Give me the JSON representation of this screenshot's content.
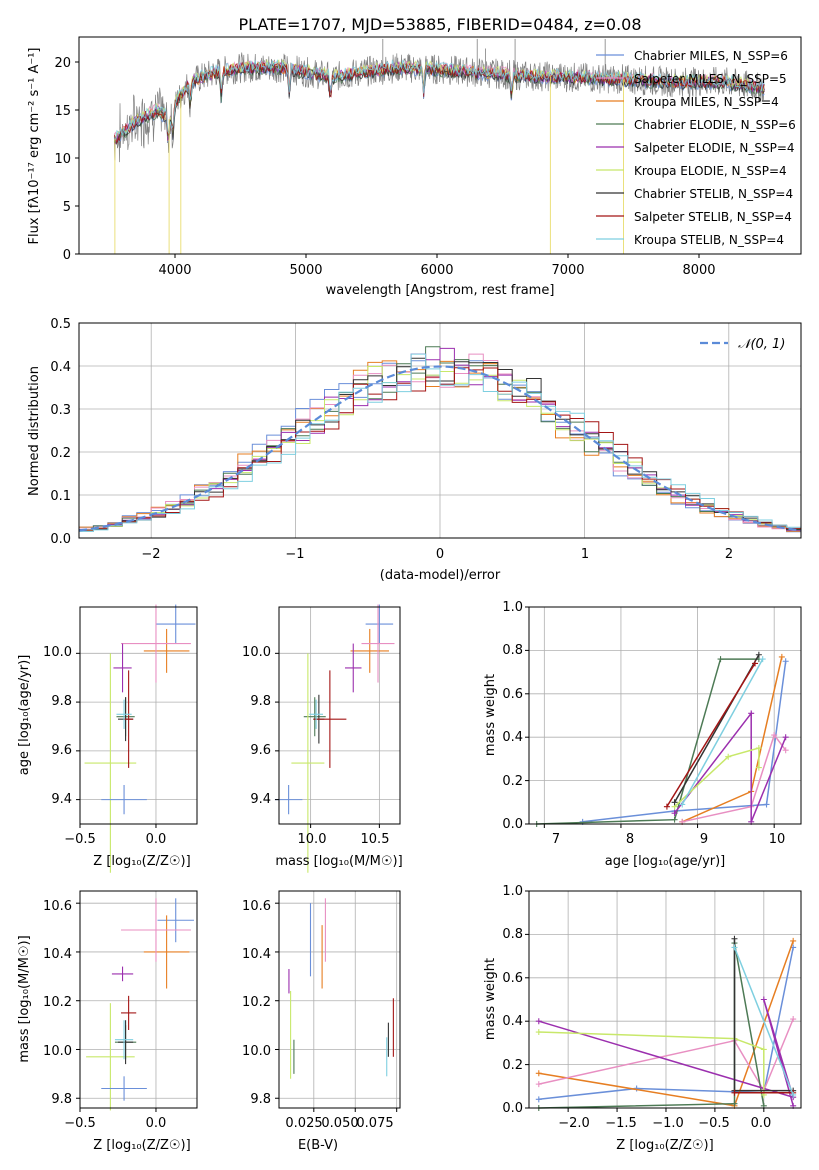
{
  "colors": {
    "axis": "#000000",
    "grid": "#b0b0b0",
    "normal_curve": "#5b8bd8",
    "series": [
      "#5b8bd8",
      "#f39c3a",
      "#d97a27",
      "#4c7a52",
      "#8e2fa8",
      "#d6e060",
      "#555555",
      "#b01c1c",
      "#8ed7e6"
    ],
    "series_alt": [
      "#6a8fd9",
      "#e67e22",
      "#e88fc2",
      "#4d7a55",
      "#9b2fae",
      "#c8e86a",
      "#333333",
      "#a31515",
      "#7ecfe0"
    ]
  },
  "spectrum": {
    "title": "PLATE=1707, MJD=53885, FIBERID=0484, z=0.08",
    "xlabel": "wavelength [Angstrom, rest frame]",
    "ylabel": "Flux [fλ10⁻¹⁷ erg cm⁻² s⁻¹ A⁻¹]",
    "xticks": [
      "4000",
      "5000",
      "6000",
      "7000",
      "8000"
    ],
    "yticks": [
      "0",
      "5",
      "10",
      "15",
      "20"
    ],
    "legend": [
      "Chabrier MILES, N_SSP=6",
      "Salpeter MILES, N_SSP=5",
      "Kroupa MILES, N_SSP=4",
      "Chabrier ELODIE, N_SSP=6",
      "Salpeter ELODIE, N_SSP=4",
      "Kroupa ELODIE, N_SSP=4",
      "Chabrier STELIB, N_SSP=4",
      "Salpeter STELIB, N_SSP=4",
      "Kroupa STELIB, N_SSP=4"
    ]
  },
  "hist": {
    "xlabel": "(data-model)/error",
    "ylabel": "Normed distribution",
    "legend": "𝒩(0, 1)",
    "xticks": [
      "−2",
      "−1",
      "0",
      "1",
      "2"
    ],
    "yticks": [
      "0.0",
      "0.1",
      "0.2",
      "0.3",
      "0.4",
      "0.5"
    ]
  },
  "panels": {
    "age_z": {
      "xlabel": "Z [log₁₀(Z/Z☉)]",
      "ylabel": "age  [log₁₀(age/yr)]",
      "xticks": [
        "−0.5",
        "0.0"
      ],
      "yticks": [
        "9.4",
        "9.6",
        "9.8",
        "10.0"
      ]
    },
    "age_mass": {
      "xlabel": "mass [log₁₀(M/M☉)]",
      "xticks": [
        "10.0",
        "10.5"
      ],
      "yticks": [
        "9.4",
        "9.6",
        "9.8",
        "10.0"
      ]
    },
    "mw_age": {
      "xlabel": "age  [log₁₀(age/yr)]",
      "ylabel": "mass weight",
      "xticks": [
        "7",
        "8",
        "9",
        "10"
      ],
      "yticks": [
        "0.0",
        "0.2",
        "0.4",
        "0.6",
        "0.8",
        "1.0"
      ]
    },
    "mass_z": {
      "xlabel": "Z [log₁₀(Z/Z☉)]",
      "ylabel": "mass [log₁₀(M/M☉)]",
      "xticks": [
        "−0.5",
        "0.0"
      ],
      "yticks": [
        "9.8",
        "10.0",
        "10.2",
        "10.4",
        "10.6"
      ]
    },
    "mass_ebv": {
      "xlabel": "E(B-V)",
      "xticks": [
        "0.025",
        "0.050",
        "0.075"
      ],
      "yticks": [
        "9.8",
        "10.0",
        "10.2",
        "10.4",
        "10.6"
      ]
    },
    "mw_z": {
      "xlabel": "Z [log₁₀(Z/Z☉)]",
      "ylabel": "mass weight",
      "xticks": [
        "−2.0",
        "−1.5",
        "−1.0",
        "−0.5",
        "0.0"
      ],
      "yticks": [
        "0.0",
        "0.2",
        "0.4",
        "0.6",
        "0.8",
        "1.0"
      ]
    }
  },
  "chart_data": [
    {
      "type": "line",
      "id": "spectrum",
      "title": "PLATE=1707, MJD=53885, FIBERID=0484, z=0.08",
      "xlabel": "wavelength [Angstrom, rest frame]",
      "xlim": [
        3250,
        8780
      ],
      "ylim": [
        0,
        22.7
      ],
      "continuum": [
        [
          3520,
          12
        ],
        [
          3700,
          14
        ],
        [
          3850,
          15
        ],
        [
          3950,
          14
        ],
        [
          4000,
          16
        ],
        [
          4100,
          18
        ],
        [
          4300,
          19
        ],
        [
          4500,
          19.5
        ],
        [
          4800,
          19.5
        ],
        [
          5000,
          19
        ],
        [
          5200,
          18.5
        ],
        [
          5400,
          19
        ],
        [
          5700,
          19.5
        ],
        [
          6000,
          19.3
        ],
        [
          6300,
          19
        ],
        [
          6600,
          18.7
        ],
        [
          7000,
          18.5
        ],
        [
          7400,
          18.3
        ],
        [
          7800,
          18
        ],
        [
          8200,
          18
        ],
        [
          8500,
          17.3
        ]
      ],
      "series": [
        "Chabrier MILES, N_SSP=6",
        "Salpeter MILES, N_SSP=5",
        "Kroupa MILES, N_SSP=4",
        "Chabrier ELODIE, N_SSP=6",
        "Salpeter ELODIE, N_SSP=4",
        "Kroupa ELODIE, N_SSP=4",
        "Chabrier STELIB, N_SSP=4",
        "Salpeter STELIB, N_SSP=4",
        "Kroupa STELIB, N_SSP=4"
      ]
    },
    {
      "type": "bar",
      "id": "hist",
      "xlabel": "(data-model)/error",
      "ylabel": "Normed distribution",
      "xlim": [
        -2.5,
        2.5
      ],
      "ylim": [
        0,
        0.5
      ],
      "bin_width": 0.1,
      "normal": {
        "mean": 0,
        "sigma": 1,
        "name": "𝒩(0, 1)"
      }
    },
    {
      "type": "scatter",
      "id": "age_z",
      "xlim": [
        -0.5,
        0.27
      ],
      "ylim": [
        9.3,
        10.19
      ],
      "points": [
        {
          "x": 0.13,
          "y": 10.12,
          "xerr": 0.13,
          "yerr": 0.08
        },
        {
          "x": 0.07,
          "y": 10.01,
          "xerr": 0.15,
          "yerr": 0.09
        },
        {
          "x": 0.0,
          "y": 10.04,
          "xerr": 0.23,
          "yerr": 0.16
        },
        {
          "x": -0.2,
          "y": 9.74,
          "xerr": 0.06,
          "yerr": 0.08
        },
        {
          "x": -0.22,
          "y": 9.94,
          "xerr": 0.06,
          "yerr": 0.1
        },
        {
          "x": -0.3,
          "y": 9.55,
          "xerr": 0.17,
          "yerr": 0.45
        },
        {
          "x": -0.2,
          "y": 9.73,
          "xerr": 0.05,
          "yerr": 0.09
        },
        {
          "x": -0.18,
          "y": 9.73,
          "xerr": 0.03,
          "yerr": 0.2
        },
        {
          "x": -0.21,
          "y": 9.75,
          "xerr": 0.05,
          "yerr": 0.06
        },
        {
          "x": -0.21,
          "y": 9.4,
          "xerr": 0.15,
          "yerr": 0.06
        }
      ]
    },
    {
      "type": "scatter",
      "id": "age_mass",
      "xlim": [
        9.77,
        10.65
      ],
      "ylim": [
        9.3,
        10.19
      ],
      "points": [
        {
          "x": 10.5,
          "y": 10.12,
          "xerr": 0.1,
          "yerr": 0.08
        },
        {
          "x": 10.43,
          "y": 10.01,
          "xerr": 0.14,
          "yerr": 0.09
        },
        {
          "x": 10.49,
          "y": 10.04,
          "xerr": 0.12,
          "yerr": 0.16
        },
        {
          "x": 10.03,
          "y": 9.74,
          "xerr": 0.08,
          "yerr": 0.08
        },
        {
          "x": 10.31,
          "y": 9.94,
          "xerr": 0.06,
          "yerr": 0.1
        },
        {
          "x": 9.98,
          "y": 9.55,
          "xerr": 0.12,
          "yerr": 0.45
        },
        {
          "x": 10.06,
          "y": 9.73,
          "xerr": 0.04,
          "yerr": 0.1
        },
        {
          "x": 10.14,
          "y": 9.73,
          "xerr": 0.12,
          "yerr": 0.2
        },
        {
          "x": 10.04,
          "y": 9.75,
          "xerr": 0.05,
          "yerr": 0.06
        },
        {
          "x": 9.84,
          "y": 9.4,
          "xerr": 0.1,
          "yerr": 0.06
        }
      ]
    },
    {
      "type": "line",
      "id": "mw_age",
      "xlim": [
        6.8,
        10.35
      ],
      "ylim": [
        0,
        1
      ],
      "series": [
        {
          "x": [
            7.5,
            8.7,
            9.9,
            10.15
          ],
          "y": [
            0.01,
            0.06,
            0.09,
            0.75
          ]
        },
        {
          "x": [
            8.8,
            9.7,
            10.1
          ],
          "y": [
            0.01,
            0.15,
            0.77
          ]
        },
        {
          "x": [
            8.8,
            9.7,
            10.0,
            10.15
          ],
          "y": [
            0.01,
            0.08,
            0.41,
            0.34
          ]
        },
        {
          "x": [
            6.9,
            8.7,
            9.3,
            9.8
          ],
          "y": [
            0.0,
            0.02,
            0.76,
            0.76
          ]
        },
        {
          "x": [
            8.7,
            9.7,
            9.7,
            10.15
          ],
          "y": [
            0.05,
            0.51,
            0.01,
            0.4
          ]
        },
        {
          "x": [
            8.7,
            9.4,
            9.8,
            9.8
          ],
          "y": [
            0.08,
            0.31,
            0.35,
            0.26
          ]
        },
        {
          "x": [
            8.7,
            9.8
          ],
          "y": [
            0.1,
            0.78
          ]
        },
        {
          "x": [
            8.6,
            9.75
          ],
          "y": [
            0.08,
            0.74
          ]
        },
        {
          "x": [
            8.8,
            9.85
          ],
          "y": [
            0.09,
            0.76
          ]
        }
      ]
    },
    {
      "type": "scatter",
      "id": "mass_z",
      "xlim": [
        -0.5,
        0.27
      ],
      "ylim": [
        9.76,
        10.65
      ],
      "points": [
        {
          "x": 0.13,
          "y": 10.53,
          "xerr": 0.12,
          "yerr": 0.09
        },
        {
          "x": 0.07,
          "y": 10.4,
          "xerr": 0.15,
          "yerr": 0.15
        },
        {
          "x": 0.0,
          "y": 10.49,
          "xerr": 0.23,
          "yerr": 0.13
        },
        {
          "x": -0.2,
          "y": 10.03,
          "xerr": 0.07,
          "yerr": 0.07
        },
        {
          "x": -0.22,
          "y": 10.31,
          "xerr": 0.07,
          "yerr": 0.03
        },
        {
          "x": -0.3,
          "y": 9.97,
          "xerr": 0.16,
          "yerr": 0.22
        },
        {
          "x": -0.2,
          "y": 10.03,
          "xerr": 0.05,
          "yerr": 0.09
        },
        {
          "x": -0.18,
          "y": 10.15,
          "xerr": 0.05,
          "yerr": 0.07
        },
        {
          "x": -0.21,
          "y": 10.04,
          "xerr": 0.06,
          "yerr": 0.08
        },
        {
          "x": -0.21,
          "y": 9.84,
          "xerr": 0.15,
          "yerr": 0.05
        }
      ]
    },
    {
      "type": "scatter",
      "id": "mass_ebv",
      "xlim": [
        0.004,
        0.077
      ],
      "ylim": [
        9.76,
        10.65
      ],
      "points": [
        {
          "x": 0.023,
          "y": 10.45,
          "xerr": 0,
          "yerr": 0.15
        },
        {
          "x": 0.03,
          "y": 10.38,
          "xerr": 0,
          "yerr": 0.13
        },
        {
          "x": 0.032,
          "y": 10.49,
          "xerr": 0,
          "yerr": 0.13
        },
        {
          "x": 0.013,
          "y": 9.97,
          "xerr": 0,
          "yerr": 0.07
        },
        {
          "x": 0.01,
          "y": 10.28,
          "xerr": 0,
          "yerr": 0.05
        },
        {
          "x": 0.011,
          "y": 10.06,
          "xerr": 0,
          "yerr": 0.18
        },
        {
          "x": 0.07,
          "y": 10.04,
          "xerr": 0,
          "yerr": 0.07
        },
        {
          "x": 0.073,
          "y": 10.09,
          "xerr": 0,
          "yerr": 0.12
        },
        {
          "x": 0.069,
          "y": 9.97,
          "xerr": 0,
          "yerr": 0.08
        }
      ]
    },
    {
      "type": "line",
      "id": "mw_z",
      "xlim": [
        -2.4,
        0.38
      ],
      "ylim": [
        0,
        1
      ],
      "series": [
        {
          "x": [
            -2.3,
            -1.3,
            0.0,
            0.3
          ],
          "y": [
            0.04,
            0.09,
            0.07,
            0.74
          ]
        },
        {
          "x": [
            -2.3,
            -0.3,
            0.3
          ],
          "y": [
            0.16,
            0.01,
            0.77
          ]
        },
        {
          "x": [
            -2.3,
            -0.3,
            0.0,
            0.3
          ],
          "y": [
            0.11,
            0.31,
            0.08,
            0.41
          ]
        },
        {
          "x": [
            -2.3,
            -0.3,
            -0.3,
            0.0
          ],
          "y": [
            0.0,
            0.02,
            0.76,
            0.01
          ]
        },
        {
          "x": [
            -2.3,
            0.3,
            0.0,
            0.3
          ],
          "y": [
            0.4,
            0.05,
            0.5,
            0.01
          ]
        },
        {
          "x": [
            -2.3,
            -0.3,
            0.0,
            0.0
          ],
          "y": [
            0.35,
            0.32,
            0.27,
            0.06
          ]
        },
        {
          "x": [
            -0.3,
            -0.3,
            0.3
          ],
          "y": [
            0.78,
            0.08,
            0.08
          ]
        },
        {
          "x": [
            -0.3,
            0.3
          ],
          "y": [
            0.07,
            0.07
          ]
        },
        {
          "x": [
            -0.3,
            0.3
          ],
          "y": [
            0.74,
            0.06
          ]
        }
      ]
    }
  ]
}
